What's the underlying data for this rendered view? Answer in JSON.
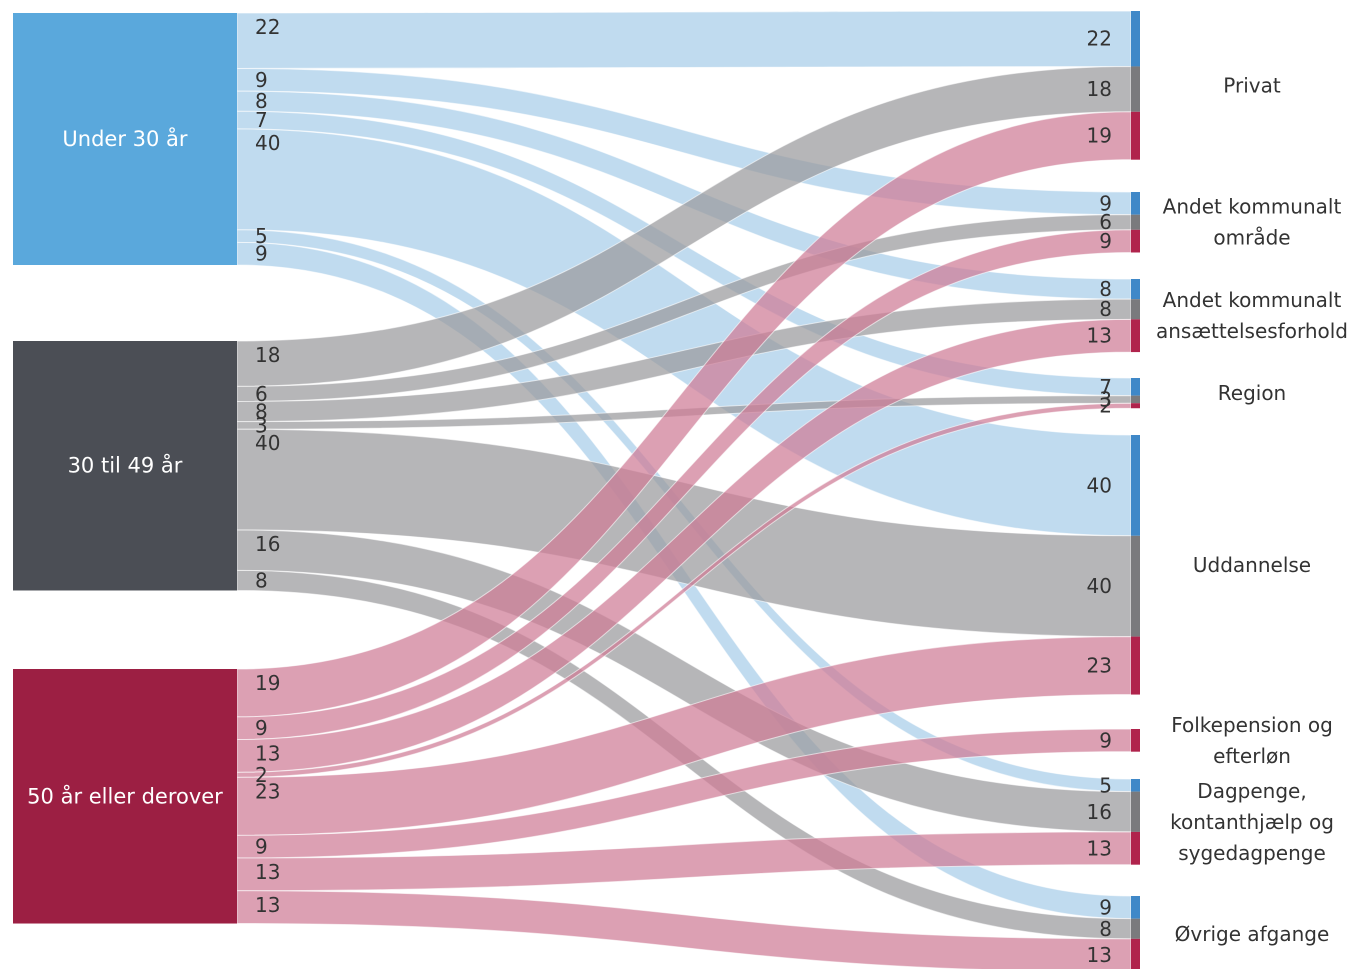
{
  "colors": {
    "under30_node": "#5aa8dc",
    "under30_flow": "#a7cde9",
    "mid_node": "#4b4e55",
    "mid_flow": "#9a9a9d",
    "over50_node": "#9c1f43",
    "over50_flow": "#cf7b95",
    "target_bar_blue": "#3f88c8",
    "target_bar_gray": "#7a7a7d",
    "target_bar_red": "#b0234c"
  },
  "sources": [
    {
      "id": "u30",
      "label": "Under 30 år",
      "color_key": "under30"
    },
    {
      "id": "m30",
      "label": "30 til 49 år",
      "color_key": "mid"
    },
    {
      "id": "o50",
      "label": "50 år eller derover",
      "color_key": "over50"
    }
  ],
  "targets": [
    {
      "id": "privat",
      "label_lines": [
        "Privat"
      ]
    },
    {
      "id": "andet_omr",
      "label_lines": [
        "Andet kommunalt",
        "område"
      ]
    },
    {
      "id": "andet_ans",
      "label_lines": [
        "Andet kommunalt",
        "ansættelsesforhold"
      ]
    },
    {
      "id": "region",
      "label_lines": [
        "Region"
      ]
    },
    {
      "id": "uddannelse",
      "label_lines": [
        "Uddannelse"
      ]
    },
    {
      "id": "folkepension",
      "label_lines": [
        "Folkepension og",
        "efterløn"
      ]
    },
    {
      "id": "dagpenge",
      "label_lines": [
        "Dagpenge,",
        "kontanthjælp og",
        "sygedagpenge"
      ]
    },
    {
      "id": "ovrige",
      "label_lines": [
        "Øvrige afgange"
      ]
    }
  ],
  "flows": [
    {
      "source": "u30",
      "target": "privat",
      "value": 22
    },
    {
      "source": "u30",
      "target": "andet_omr",
      "value": 9
    },
    {
      "source": "u30",
      "target": "andet_ans",
      "value": 8
    },
    {
      "source": "u30",
      "target": "region",
      "value": 7
    },
    {
      "source": "u30",
      "target": "uddannelse",
      "value": 40
    },
    {
      "source": "u30",
      "target": "dagpenge",
      "value": 5
    },
    {
      "source": "u30",
      "target": "ovrige",
      "value": 9
    },
    {
      "source": "m30",
      "target": "privat",
      "value": 18
    },
    {
      "source": "m30",
      "target": "andet_omr",
      "value": 6
    },
    {
      "source": "m30",
      "target": "andet_ans",
      "value": 8
    },
    {
      "source": "m30",
      "target": "region",
      "value": 3
    },
    {
      "source": "m30",
      "target": "uddannelse",
      "value": 40
    },
    {
      "source": "m30",
      "target": "dagpenge",
      "value": 16
    },
    {
      "source": "m30",
      "target": "ovrige",
      "value": 8
    },
    {
      "source": "o50",
      "target": "privat",
      "value": 19
    },
    {
      "source": "o50",
      "target": "andet_omr",
      "value": 9
    },
    {
      "source": "o50",
      "target": "andet_ans",
      "value": 13
    },
    {
      "source": "o50",
      "target": "region",
      "value": 2
    },
    {
      "source": "o50",
      "target": "uddannelse",
      "value": 23
    },
    {
      "source": "o50",
      "target": "folkepension",
      "value": 9
    },
    {
      "source": "o50",
      "target": "dagpenge",
      "value": 13
    },
    {
      "source": "o50",
      "target": "ovrige",
      "value": 13
    }
  ]
}
